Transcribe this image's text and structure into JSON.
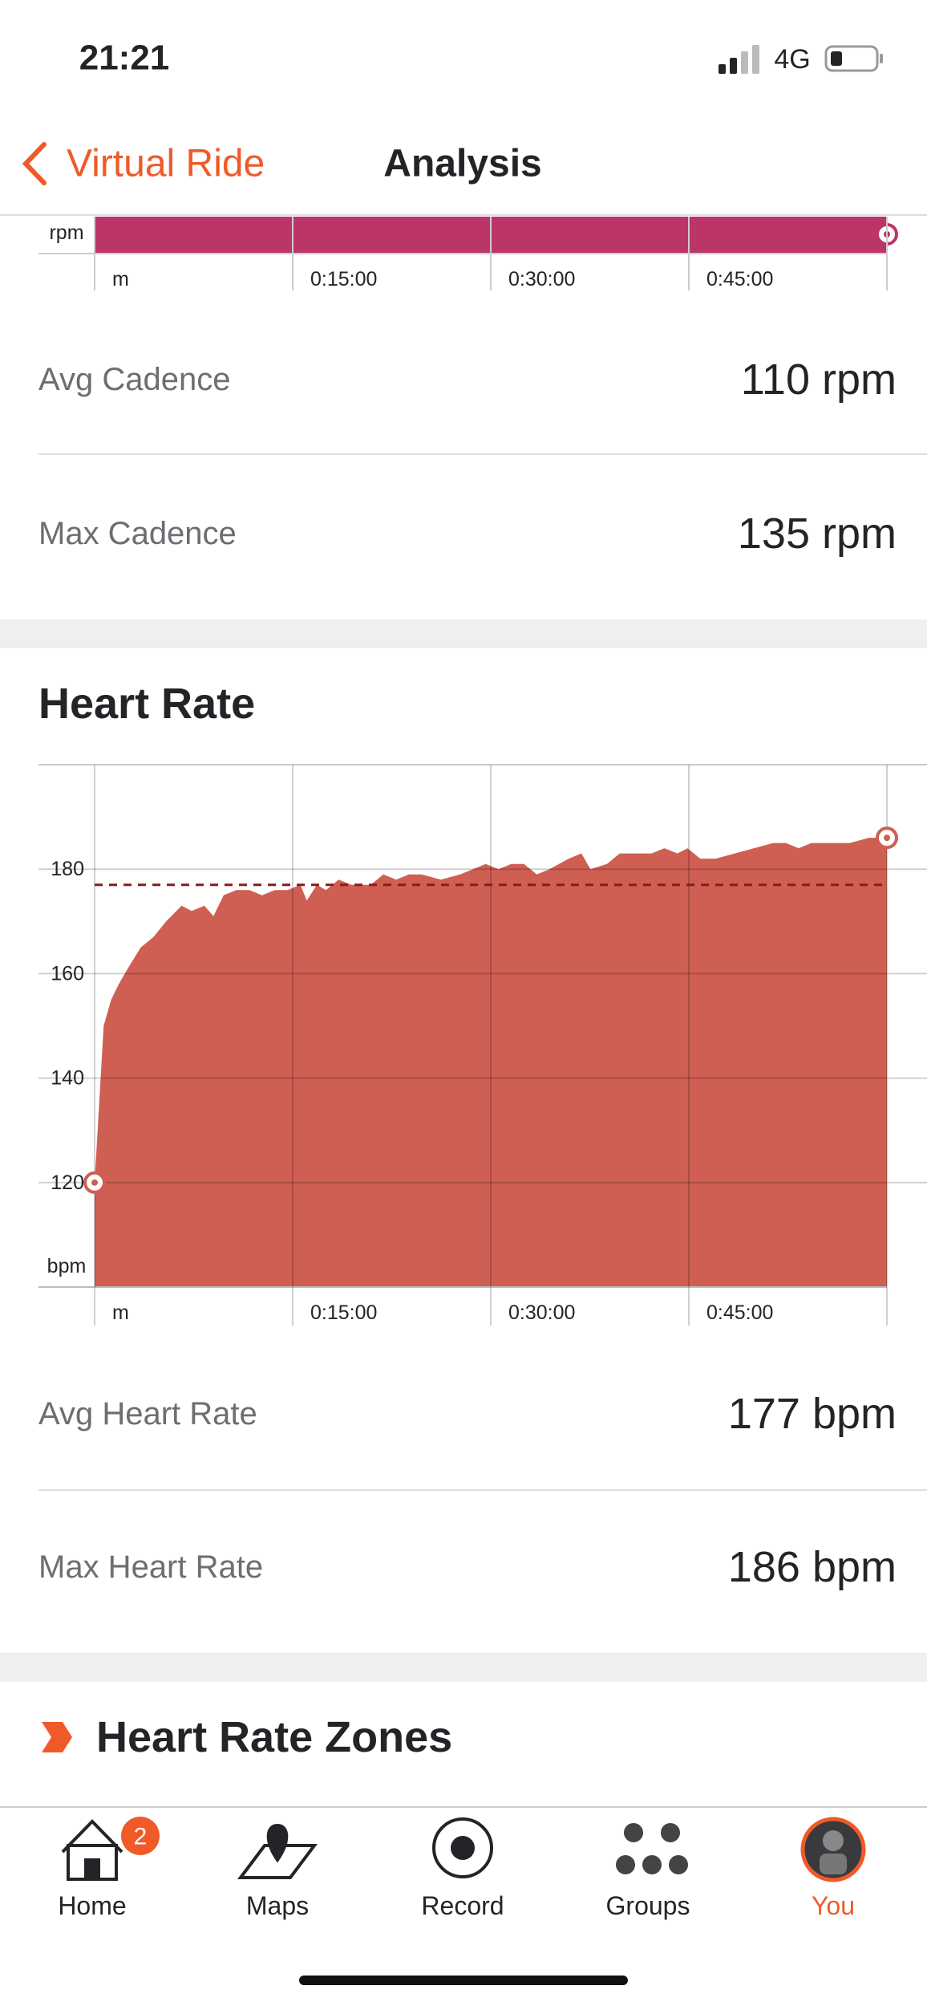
{
  "status_bar": {
    "time": "21:21",
    "network": "4G"
  },
  "nav": {
    "back": "Virtual Ride",
    "title": "Analysis"
  },
  "cadence": {
    "chart": {
      "y_label": "rpm",
      "xticks": [
        "m",
        "0:15:00",
        "0:30:00",
        "0:45:00"
      ]
    },
    "stats": [
      {
        "label": "Avg Cadence",
        "value": "110 rpm"
      },
      {
        "label": "Max Cadence",
        "value": "135 rpm"
      }
    ]
  },
  "heart_rate": {
    "title": "Heart Rate",
    "chart": {
      "type": "area",
      "y_label": "bpm",
      "color": "#cf5f52",
      "average": 177,
      "average_color": "#8b1a1a",
      "x": [
        0,
        41,
        75,
        110,
        151,
        209,
        267,
        325,
        395,
        441,
        499,
        540,
        586,
        644,
        703,
        761,
        819,
        877,
        935,
        964,
        1010,
        1051,
        1109,
        1167,
        1254,
        1312,
        1370,
        1428,
        1486,
        1573,
        1661,
        1719,
        1777,
        1835,
        1893,
        1951,
        2009,
        2067,
        2154,
        2212,
        2253,
        2328,
        2386,
        2444,
        2531,
        2589,
        2648,
        2694,
        2752,
        2822,
        2909,
        2996,
        3083,
        3141,
        3199,
        3257,
        3344,
        3431,
        3518,
        3600
      ],
      "values": [
        120,
        150,
        155,
        158,
        161,
        165,
        167,
        170,
        173,
        172,
        173,
        171,
        175,
        176,
        176,
        175,
        176,
        176,
        177,
        174,
        177,
        176,
        178,
        177,
        177,
        179,
        178,
        179,
        179,
        178,
        179,
        180,
        181,
        180,
        181,
        181,
        179,
        180,
        182,
        183,
        180,
        181,
        183,
        183,
        183,
        184,
        183,
        184,
        182,
        182,
        183,
        184,
        185,
        185,
        184,
        185,
        185,
        185,
        186,
        186
      ],
      "xlim": [
        0,
        3600
      ],
      "ylim": [
        100,
        200
      ],
      "yticks": [
        120,
        140,
        160,
        180
      ],
      "xticks": [
        {
          "value": 0,
          "label": "m"
        },
        {
          "value": 900,
          "label": "0:15:00"
        },
        {
          "value": 1800,
          "label": "0:30:00"
        },
        {
          "value": 2700,
          "label": "0:45:00"
        },
        {
          "value": 3600,
          "label": ""
        }
      ],
      "grid": true
    },
    "stats": [
      {
        "label": "Avg Heart Rate",
        "value": "177 bpm"
      },
      {
        "label": "Max Heart Rate",
        "value": "186 bpm"
      }
    ]
  },
  "zones": {
    "title": "Heart Rate Zones"
  },
  "tab_bar": {
    "items": [
      {
        "label": "Home",
        "badge": "2",
        "color": "#242428"
      },
      {
        "label": "Maps",
        "color": "#242428"
      },
      {
        "label": "Record",
        "color": "#242428"
      },
      {
        "label": "Groups",
        "color": "#242428"
      },
      {
        "label": "You",
        "color": "#f05a28"
      }
    ]
  }
}
